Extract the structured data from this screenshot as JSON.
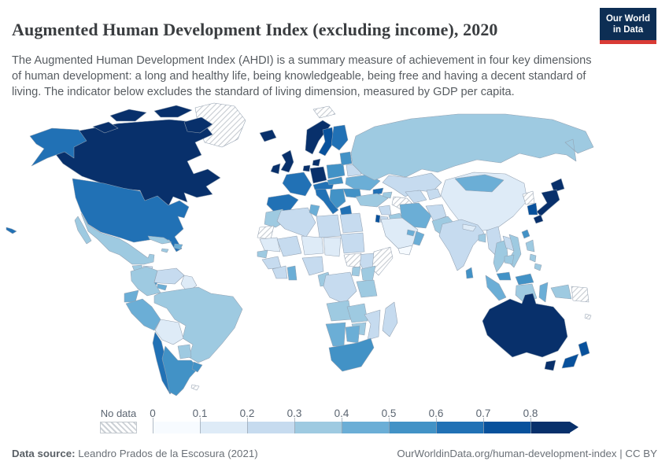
{
  "header": {
    "title": "Augmented Human Development Index (excluding income), 2020",
    "subtitle": "The Augmented Human Development Index (AHDI) is a summary measure of achievement in four key dimensions of human development: a long and healthy life, being knowledgeable, being free and having a decent standard of living. The indicator below excludes the standard of living dimension, measured by GDP per capita.",
    "logo": {
      "line1": "Our World",
      "line2": "in Data",
      "bg_color": "#0d2e54",
      "stripe_color": "#d93b35"
    }
  },
  "legend": {
    "no_data_label": "No data",
    "ticks": [
      "0",
      "0.1",
      "0.2",
      "0.3",
      "0.4",
      "0.5",
      "0.6",
      "0.7",
      "0.8"
    ],
    "colors": [
      "#f7fbff",
      "#deebf7",
      "#c6dbef",
      "#9ecae1",
      "#6baed6",
      "#4292c6",
      "#2171b5",
      "#08519c",
      "#08306b"
    ]
  },
  "footer": {
    "source_label": "Data source:",
    "source_value": " Leandro Prados de la Escosura (2021)",
    "url": "OurWorldinData.org/human-development-index",
    "separator": " | ",
    "license": "CC BY"
  },
  "map": {
    "regions": [
      {
        "id": "canada",
        "name": "Canada",
        "color": "#08306b"
      },
      {
        "id": "greenland",
        "name": "Greenland",
        "color": "nodata"
      },
      {
        "id": "svalbard",
        "name": "Svalbard",
        "color": "nodata"
      },
      {
        "id": "iceland",
        "name": "Iceland",
        "color": "#08306b"
      },
      {
        "id": "united-states",
        "name": "United States",
        "color": "#2171b5"
      },
      {
        "id": "mexico",
        "name": "Mexico",
        "color": "#9ecae1"
      },
      {
        "id": "guatemala",
        "name": "Guatemala",
        "color": "#9ecae1"
      },
      {
        "id": "honduras",
        "name": "Honduras",
        "color": "#c6dbef"
      },
      {
        "id": "nicaragua",
        "name": "Nicaragua",
        "color": "#9ecae1"
      },
      {
        "id": "costa-rica",
        "name": "Costa Rica",
        "color": "#4292c6"
      },
      {
        "id": "panama",
        "name": "Panama",
        "color": "#6baed6"
      },
      {
        "id": "cuba",
        "name": "Cuba",
        "color": "#9ecae1"
      },
      {
        "id": "hispaniola",
        "name": "Dominican Republic / Haiti",
        "color": "#6baed6"
      },
      {
        "id": "jamaica",
        "name": "Jamaica",
        "color": "#9ecae1"
      },
      {
        "id": "colombia",
        "name": "Colombia",
        "color": "#9ecae1"
      },
      {
        "id": "venezuela",
        "name": "Venezuela",
        "color": "#c6dbef"
      },
      {
        "id": "guyana",
        "name": "Guyana / Suriname",
        "color": "#deebf7"
      },
      {
        "id": "brazil",
        "name": "Brazil",
        "color": "#9ecae1"
      },
      {
        "id": "ecuador",
        "name": "Ecuador",
        "color": "#6baed6"
      },
      {
        "id": "peru",
        "name": "Peru",
        "color": "#6baed6"
      },
      {
        "id": "bolivia",
        "name": "Bolivia",
        "color": "#deebf7"
      },
      {
        "id": "paraguay",
        "name": "Paraguay",
        "color": "#9ecae1"
      },
      {
        "id": "chile",
        "name": "Chile",
        "color": "#2171b5"
      },
      {
        "id": "argentina",
        "name": "Argentina",
        "color": "#4292c6"
      },
      {
        "id": "uruguay",
        "name": "Uruguay",
        "color": "#4292c6"
      },
      {
        "id": "falkland-islands",
        "name": "Falkland Islands",
        "color": "nodata"
      },
      {
        "id": "united-kingdom",
        "name": "United Kingdom",
        "color": "#08306b"
      },
      {
        "id": "ireland",
        "name": "Ireland",
        "color": "#08306b"
      },
      {
        "id": "norway",
        "name": "Norway",
        "color": "#08306b"
      },
      {
        "id": "sweden",
        "name": "Sweden",
        "color": "#08519c"
      },
      {
        "id": "finland",
        "name": "Finland",
        "color": "#2171b5"
      },
      {
        "id": "denmark",
        "name": "Denmark",
        "color": "#08306b"
      },
      {
        "id": "germany",
        "name": "Germany",
        "color": "#08306b"
      },
      {
        "id": "benelux",
        "name": "Netherlands / Belgium",
        "color": "#08306b"
      },
      {
        "id": "france",
        "name": "France",
        "color": "#2171b5"
      },
      {
        "id": "spain",
        "name": "Spain / Portugal",
        "color": "#2171b5"
      },
      {
        "id": "italy",
        "name": "Italy",
        "color": "#2171b5"
      },
      {
        "id": "austria-switzerland",
        "name": "Austria / Switzerland",
        "color": "#2171b5"
      },
      {
        "id": "poland",
        "name": "Poland",
        "color": "#4292c6"
      },
      {
        "id": "czech-slovakia",
        "name": "Czechia / Slovakia",
        "color": "#4292c6"
      },
      {
        "id": "baltics",
        "name": "Baltic states",
        "color": "#4292c6"
      },
      {
        "id": "belarus",
        "name": "Belarus",
        "color": "#c6dbef"
      },
      {
        "id": "ukraine",
        "name": "Ukraine",
        "color": "#6baed6"
      },
      {
        "id": "romania",
        "name": "Romania",
        "color": "#4292c6"
      },
      {
        "id": "balkans",
        "name": "Balkans / Hungary",
        "color": "#4292c6"
      },
      {
        "id": "greece",
        "name": "Greece",
        "color": "#2171b5"
      },
      {
        "id": "russia",
        "name": "Russia",
        "color": "#9ecae1"
      },
      {
        "id": "kazakhstan",
        "name": "Kazakhstan",
        "color": "#c6dbef"
      },
      {
        "id": "turkmenistan",
        "name": "Turkmenistan",
        "color": "nodata"
      },
      {
        "id": "uzbekistan",
        "name": "Uzbekistan",
        "color": "#c6dbef"
      },
      {
        "id": "kyrgyzstan-tajikistan",
        "name": "Kyrgyzstan / Tajikistan",
        "color": "#c6dbef"
      },
      {
        "id": "georgia",
        "name": "Georgia",
        "color": "#2171b5"
      },
      {
        "id": "azerbaijan-armenia",
        "name": "Azerbaijan / Armenia",
        "color": "#9ecae1"
      },
      {
        "id": "turkey",
        "name": "Turkey",
        "color": "#9ecae1"
      },
      {
        "id": "syria",
        "name": "Syria",
        "color": "#c6dbef"
      },
      {
        "id": "israel",
        "name": "Israel",
        "color": "#08519c"
      },
      {
        "id": "jordan",
        "name": "Jordan",
        "color": "#c6dbef"
      },
      {
        "id": "iraq",
        "name": "Iraq",
        "color": "#9ecae1"
      },
      {
        "id": "iran",
        "name": "Iran",
        "color": "#6baed6"
      },
      {
        "id": "afghanistan",
        "name": "Afghanistan",
        "color": "#c6dbef"
      },
      {
        "id": "pakistan",
        "name": "Pakistan",
        "color": "#9ecae1"
      },
      {
        "id": "saudi-arabia",
        "name": "Saudi Arabia",
        "color": "#deebf7"
      },
      {
        "id": "yemen",
        "name": "Yemen",
        "color": "#f7fbff"
      },
      {
        "id": "oman",
        "name": "Oman",
        "color": "#6baed6"
      },
      {
        "id": "gulf-states",
        "name": "UAE / Qatar",
        "color": "#6baed6"
      },
      {
        "id": "egypt",
        "name": "Egypt",
        "color": "#c6dbef"
      },
      {
        "id": "morocco",
        "name": "Morocco",
        "color": "#9ecae1"
      },
      {
        "id": "western-sahara",
        "name": "Western Sahara",
        "color": "nodata"
      },
      {
        "id": "algeria",
        "name": "Algeria",
        "color": "#c6dbef"
      },
      {
        "id": "tunisia",
        "name": "Tunisia",
        "color": "#6baed6"
      },
      {
        "id": "libya",
        "name": "Libya",
        "color": "#c6dbef"
      },
      {
        "id": "mauritania",
        "name": "Mauritania",
        "color": "#deebf7"
      },
      {
        "id": "mali",
        "name": "Mali",
        "color": "#c6dbef"
      },
      {
        "id": "niger",
        "name": "Niger",
        "color": "#deebf7"
      },
      {
        "id": "chad",
        "name": "Chad",
        "color": "#deebf7"
      },
      {
        "id": "sudan",
        "name": "Sudan",
        "color": "#c6dbef"
      },
      {
        "id": "senegal",
        "name": "Senegal",
        "color": "#9ecae1"
      },
      {
        "id": "guinea",
        "name": "Guinea",
        "color": "#c6dbef"
      },
      {
        "id": "cote-divoire",
        "name": "Côte d'Ivoire / Liberia",
        "color": "#c6dbef"
      },
      {
        "id": "ghana",
        "name": "Ghana",
        "color": "#6baed6"
      },
      {
        "id": "nigeria",
        "name": "Nigeria",
        "color": "#c6dbef"
      },
      {
        "id": "cameroon",
        "name": "Cameroon",
        "color": "#9ecae1"
      },
      {
        "id": "ethiopia",
        "name": "Ethiopia",
        "color": "#c6dbef"
      },
      {
        "id": "somalia",
        "name": "Somalia",
        "color": "nodata"
      },
      {
        "id": "south-sudan",
        "name": "South Sudan",
        "color": "nodata"
      },
      {
        "id": "kenya",
        "name": "Kenya",
        "color": "#9ecae1"
      },
      {
        "id": "uganda",
        "name": "Uganda",
        "color": "#9ecae1"
      },
      {
        "id": "dr-congo",
        "name": "Democratic Republic of Congo",
        "color": "#c6dbef"
      },
      {
        "id": "tanzania",
        "name": "Tanzania",
        "color": "#9ecae1"
      },
      {
        "id": "angola",
        "name": "Angola",
        "color": "#9ecae1"
      },
      {
        "id": "zambia",
        "name": "Zambia",
        "color": "#9ecae1"
      },
      {
        "id": "mozambique",
        "name": "Mozambique",
        "color": "#c6dbef"
      },
      {
        "id": "zimbabwe",
        "name": "Zimbabwe",
        "color": "#9ecae1"
      },
      {
        "id": "namibia",
        "name": "Namibia",
        "color": "#6baed6"
      },
      {
        "id": "botswana",
        "name": "Botswana",
        "color": "#6baed6"
      },
      {
        "id": "south-africa",
        "name": "South Africa",
        "color": "#4292c6"
      },
      {
        "id": "madagascar",
        "name": "Madagascar",
        "color": "#c6dbef"
      },
      {
        "id": "china",
        "name": "China",
        "color": "#deebf7"
      },
      {
        "id": "mongolia",
        "name": "Mongolia",
        "color": "#6baed6"
      },
      {
        "id": "india",
        "name": "India",
        "color": "#c6dbef"
      },
      {
        "id": "nepal",
        "name": "Nepal",
        "color": "#deebf7"
      },
      {
        "id": "bangladesh",
        "name": "Bangladesh",
        "color": "#9ecae1"
      },
      {
        "id": "sri-lanka",
        "name": "Sri Lanka",
        "color": "#4292c6"
      },
      {
        "id": "myanmar",
        "name": "Myanmar",
        "color": "#c6dbef"
      },
      {
        "id": "thailand",
        "name": "Thailand",
        "color": "#9ecae1"
      },
      {
        "id": "laos",
        "name": "Laos",
        "color": "#c6dbef"
      },
      {
        "id": "vietnam",
        "name": "Vietnam",
        "color": "#9ecae1"
      },
      {
        "id": "cambodia",
        "name": "Cambodia",
        "color": "#9ecae1"
      },
      {
        "id": "malaysia",
        "name": "Malaysia",
        "color": "#4292c6"
      },
      {
        "id": "indonesia",
        "name": "Indonesia",
        "color": "#6baed6"
      },
      {
        "id": "indonesia-borneo",
        "name": "Indonesia (Kalimantan)",
        "color": "#9ecae1"
      },
      {
        "id": "indonesia-papua",
        "name": "Indonesia (Papua)",
        "color": "#9ecae1"
      },
      {
        "id": "philippines",
        "name": "Philippines",
        "color": "#9ecae1"
      },
      {
        "id": "taiwan",
        "name": "Taiwan",
        "color": "#4292c6"
      },
      {
        "id": "north-korea",
        "name": "North Korea",
        "color": "nodata"
      },
      {
        "id": "south-korea",
        "name": "South Korea",
        "color": "#08519c"
      },
      {
        "id": "japan",
        "name": "Japan",
        "color": "#08306b"
      },
      {
        "id": "papua-new-guinea",
        "name": "Papua New Guinea",
        "color": "nodata"
      },
      {
        "id": "fiji",
        "name": "Fiji",
        "color": "nodata"
      },
      {
        "id": "australia",
        "name": "Australia",
        "color": "#08306b"
      },
      {
        "id": "new-zealand",
        "name": "New Zealand",
        "color": "#08519c"
      }
    ]
  }
}
